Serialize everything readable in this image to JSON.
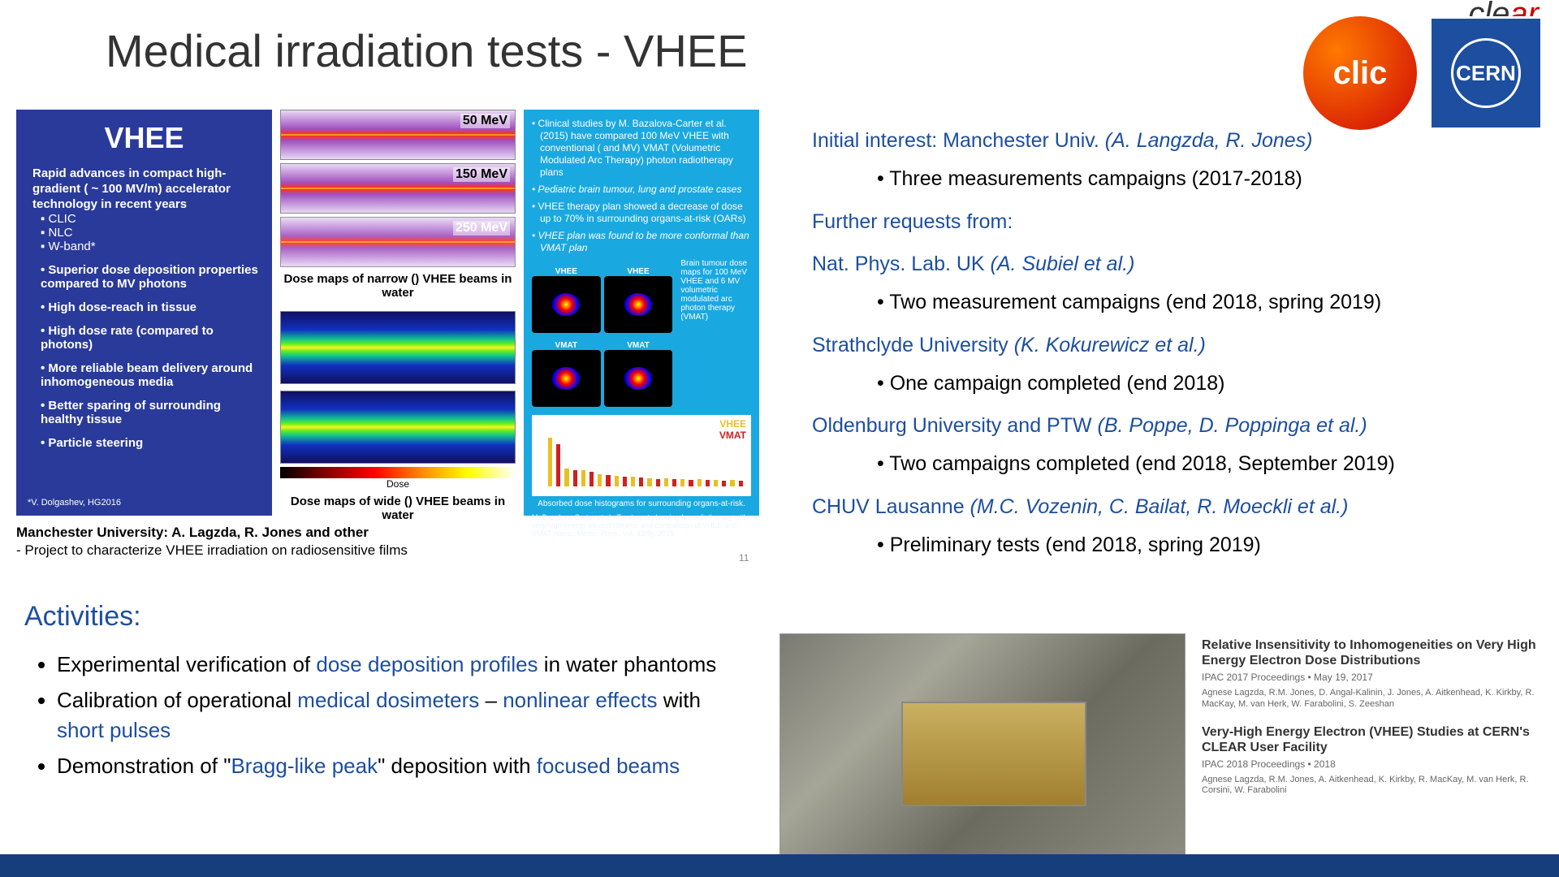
{
  "title": "Medical irradiation tests - VHEE",
  "logos": {
    "clic": "clic",
    "cern": "CERN",
    "clear": "cle",
    "clear2": "ar"
  },
  "vhee": {
    "heading": "VHEE",
    "lead": "Rapid advances in compact high-gradient ( ~ 100 MV/m) accelerator technology in recent years",
    "sublist": [
      "CLIC",
      "NLC",
      "W-band*"
    ],
    "points": [
      "Superior dose deposition properties compared to MV photons",
      "High dose-reach in tissue",
      "High dose rate (compared to photons)",
      "More reliable beam delivery around inhomogeneous media",
      "Better sparing of surrounding healthy tissue",
      "Particle steering"
    ],
    "ref": "*V. Dolgashev, HG2016"
  },
  "dose": {
    "energies": [
      "50 MeV",
      "150 MeV",
      "250 MeV"
    ],
    "cap_narrow": "Dose maps of narrow () VHEE beams in water",
    "cap_wide": "Dose maps of wide () VHEE beams in water",
    "cbar_label": "Dose"
  },
  "cyan": {
    "bullets": [
      "Clinical studies by M. Bazalova-Carter et al. (2015) have compared 100 MeV VHEE with conventional ( and MV) VMAT (Volumetric Modulated Arc Therapy) photon radiotherapy plans",
      "Pediatric brain tumour, lung and prostate cases",
      "VHEE therapy plan showed a decrease of dose up to 70% in surrounding organs-at-risk (OARs)",
      "VHEE plan was found to be more conformal than VMAT plan"
    ],
    "brain_vhee": "VHEE",
    "brain_vmat": "VMAT",
    "sidedesc": "Brain tumour dose maps for 100 MeV VHEE and 6 MV volumetric modulated arc photon therapy (VMAT)",
    "legend_vhee": "VHEE",
    "legend_vmat": "VMAT",
    "hist_values_vhee": [
      60,
      22,
      20,
      15,
      13,
      12,
      10,
      10,
      9,
      9,
      8,
      8
    ],
    "hist_values_vmat": [
      52,
      20,
      18,
      14,
      12,
      11,
      9,
      9,
      8,
      8,
      7,
      7
    ],
    "histcap": "Absorbed dose histograms for surrounding organs-at-risk.",
    "bottomref": "M. Bazalova-Carter et al., Treatment planning for radiotherapy with very high-energy electron beams and comparison of VHEE and VMAT plans., Medic. Phys., vol. 42(5), 2015."
  },
  "credit": {
    "l1": "Manchester University: A. Lagzda, R. Jones and other",
    "l2": "- Project to characterize VHEE irradiation on radiosensitive films"
  },
  "pgnum": "11",
  "activities": {
    "heading": "Activities:",
    "items": [
      {
        "pre": "Experimental verification of ",
        "hl": "dose deposition profiles",
        "post": " in water phantoms"
      },
      {
        "pre": "Calibration of operational ",
        "hl": "medical dosimeters",
        "post": " – ",
        "hl2": "nonlinear effects",
        "post2": " with ",
        "hl3": "short pulses"
      },
      {
        "pre": "Demonstration of \"",
        "hl": "Bragg-like peak",
        "post": "\" deposition with ",
        "hl2": "focused beams"
      }
    ]
  },
  "right": {
    "initial": "Initial interest: Manchester Univ.  ",
    "initial_names": "(A. Langzda, R. Jones)",
    "initial_item": "Three measurements campaigns (2017-2018)",
    "further": "Further requests from:",
    "groups": [
      {
        "org": "Nat. Phys. Lab. UK ",
        "names": "(A. Subiel et al.)",
        "items": [
          "Two measurement campaigns (end 2018, spring 2019)"
        ]
      },
      {
        "org": "Strathclyde University ",
        "names": "(K. Kokurewicz et  al.)",
        "items": [
          "One campaign completed (end 2018)"
        ]
      },
      {
        "org": "Oldenburg University and PTW ",
        "names": "(B. Poppe, D. Poppinga et al.)",
        "items": [
          "Two campaigns completed (end 2018, September 2019)"
        ]
      },
      {
        "org": "CHUV Lausanne ",
        "names": "(M.C. Vozenin, C. Bailat, R. Moeckli  et al.)",
        "items": [
          "Preliminary tests (end 2018, spring 2019)"
        ]
      }
    ]
  },
  "pubs": [
    {
      "title": "Relative Insensitivity to Inhomogeneities on Very High Energy Electron Dose Distributions",
      "meta": "IPAC 2017 Proceedings  •  May 19, 2017",
      "auth": "Agnese Lagzda, R.M. Jones, D. Angal-Kalinin, J. Jones, A. Aitkenhead, K. Kirkby, R. MacKay, M. van Herk, W. Farabolini, S. Zeeshan"
    },
    {
      "title": "Very-High Energy Electron (VHEE) Studies at CERN's CLEAR User Facility",
      "meta": "IPAC 2018 Proceedings  •  2018",
      "auth": "Agnese Lagzda, R.M. Jones, A. Aitkenhead, K. Kirkby, R. MacKay, M. van Herk, R. Corsini, W. Farabolini"
    }
  ]
}
